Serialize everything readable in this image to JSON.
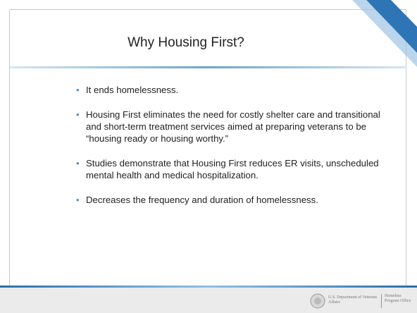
{
  "title": "Why Housing First?",
  "bullets": [
    "It ends homelessness.",
    "Housing First eliminates the need for costly shelter care and transitional and short-term treatment  services aimed at preparing veterans to be “housing ready or housing worthy.”",
    "Studies demonstrate that Housing First reduces ER visits, unscheduled mental health and medical hospitalization.",
    "Decreases the frequency and duration of homelessness."
  ],
  "footer": {
    "department": "U.S. Department of Veterans Affairs",
    "office": "Homeless Program Office"
  }
}
